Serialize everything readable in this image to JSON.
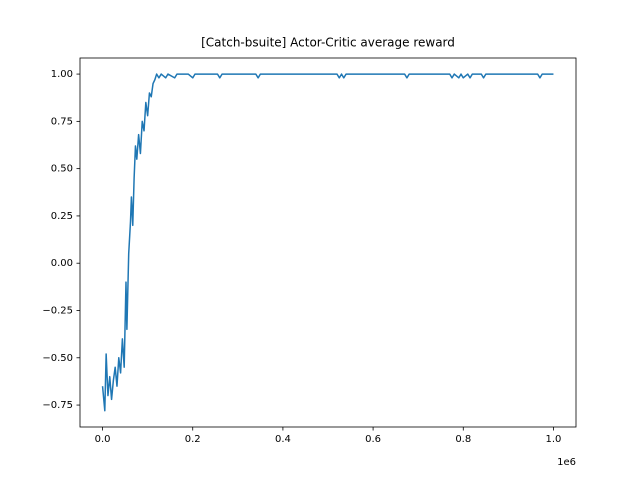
{
  "chart_data": {
    "type": "line",
    "title": "[Catch-bsuite] Actor-Critic average reward",
    "x_offset_label": "1e6",
    "series": [
      {
        "name": "average reward",
        "color": "#1f77b4",
        "x": [
          0,
          5000,
          8000,
          12000,
          16000,
          20000,
          24000,
          28000,
          32000,
          36000,
          40000,
          44000,
          48000,
          52000,
          54000,
          58000,
          62000,
          64000,
          67000,
          70000,
          73000,
          76000,
          80000,
          84000,
          88000,
          92000,
          96000,
          100000,
          104000,
          108000,
          112000,
          116000,
          120000,
          125000,
          130000,
          140000,
          145000,
          160000,
          165000,
          190000,
          200000,
          205000,
          255000,
          260000,
          265000,
          340000,
          345000,
          350000,
          520000,
          525000,
          530000,
          535000,
          540000,
          670000,
          675000,
          680000,
          770000,
          775000,
          780000,
          790000,
          795000,
          800000,
          810000,
          815000,
          820000,
          840000,
          845000,
          850000,
          965000,
          970000,
          975000,
          1000000
        ],
        "values": [
          -0.65,
          -0.78,
          -0.48,
          -0.7,
          -0.6,
          -0.72,
          -0.62,
          -0.55,
          -0.65,
          -0.5,
          -0.58,
          -0.4,
          -0.55,
          -0.1,
          -0.35,
          0.05,
          0.22,
          0.35,
          0.2,
          0.45,
          0.62,
          0.55,
          0.68,
          0.58,
          0.75,
          0.7,
          0.85,
          0.78,
          0.9,
          0.88,
          0.95,
          0.97,
          1.0,
          0.98,
          1.0,
          0.98,
          1.0,
          0.98,
          1.0,
          1.0,
          0.98,
          1.0,
          1.0,
          0.98,
          1.0,
          1.0,
          0.98,
          1.0,
          1.0,
          0.98,
          1.0,
          0.98,
          1.0,
          1.0,
          0.98,
          1.0,
          1.0,
          0.98,
          1.0,
          0.98,
          1.0,
          0.98,
          1.0,
          0.98,
          1.0,
          1.0,
          0.98,
          1.0,
          1.0,
          0.98,
          1.0,
          1.0
        ]
      }
    ],
    "xlim": [
      -50000,
      1050000
    ],
    "xticks": [
      {
        "value": 0,
        "label": "0.0"
      },
      {
        "value": 200000,
        "label": "0.2"
      },
      {
        "value": 400000,
        "label": "0.4"
      },
      {
        "value": 600000,
        "label": "0.6"
      },
      {
        "value": 800000,
        "label": "0.8"
      },
      {
        "value": 1000000,
        "label": "1.0"
      }
    ],
    "ylim": [
      -0.866,
      1.085
    ],
    "yticks": [
      {
        "value": -0.75,
        "label": "−0.75"
      },
      {
        "value": -0.5,
        "label": "−0.50"
      },
      {
        "value": -0.25,
        "label": "−0.25"
      },
      {
        "value": 0,
        "label": "0.00"
      },
      {
        "value": 0.25,
        "label": "0.25"
      },
      {
        "value": 0.5,
        "label": "0.50"
      },
      {
        "value": 0.75,
        "label": "0.75"
      },
      {
        "value": 1,
        "label": "1.00"
      }
    ]
  }
}
